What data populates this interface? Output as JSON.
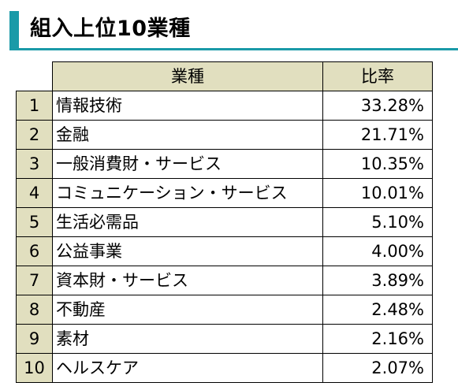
{
  "header": {
    "title": "組入上位10業種",
    "accent_color": "#1a9aa8"
  },
  "table": {
    "header_fill": "#e1dfbf",
    "columns": {
      "sector": "業種",
      "ratio": "比率"
    },
    "rows": [
      {
        "rank": "1",
        "sector": "情報技術",
        "ratio": "33.28%"
      },
      {
        "rank": "2",
        "sector": "金融",
        "ratio": "21.71%"
      },
      {
        "rank": "3",
        "sector": "一般消費財・サービス",
        "ratio": "10.35%"
      },
      {
        "rank": "4",
        "sector": "コミュニケーション・サービス",
        "ratio": "10.01%"
      },
      {
        "rank": "5",
        "sector": "生活必需品",
        "ratio": "5.10%"
      },
      {
        "rank": "6",
        "sector": "公益事業",
        "ratio": "4.00%"
      },
      {
        "rank": "7",
        "sector": "資本財・サービス",
        "ratio": "3.89%"
      },
      {
        "rank": "8",
        "sector": "不動産",
        "ratio": "2.48%"
      },
      {
        "rank": "9",
        "sector": "素材",
        "ratio": "2.16%"
      },
      {
        "rank": "10",
        "sector": "ヘルスケア",
        "ratio": "2.07%"
      }
    ]
  }
}
